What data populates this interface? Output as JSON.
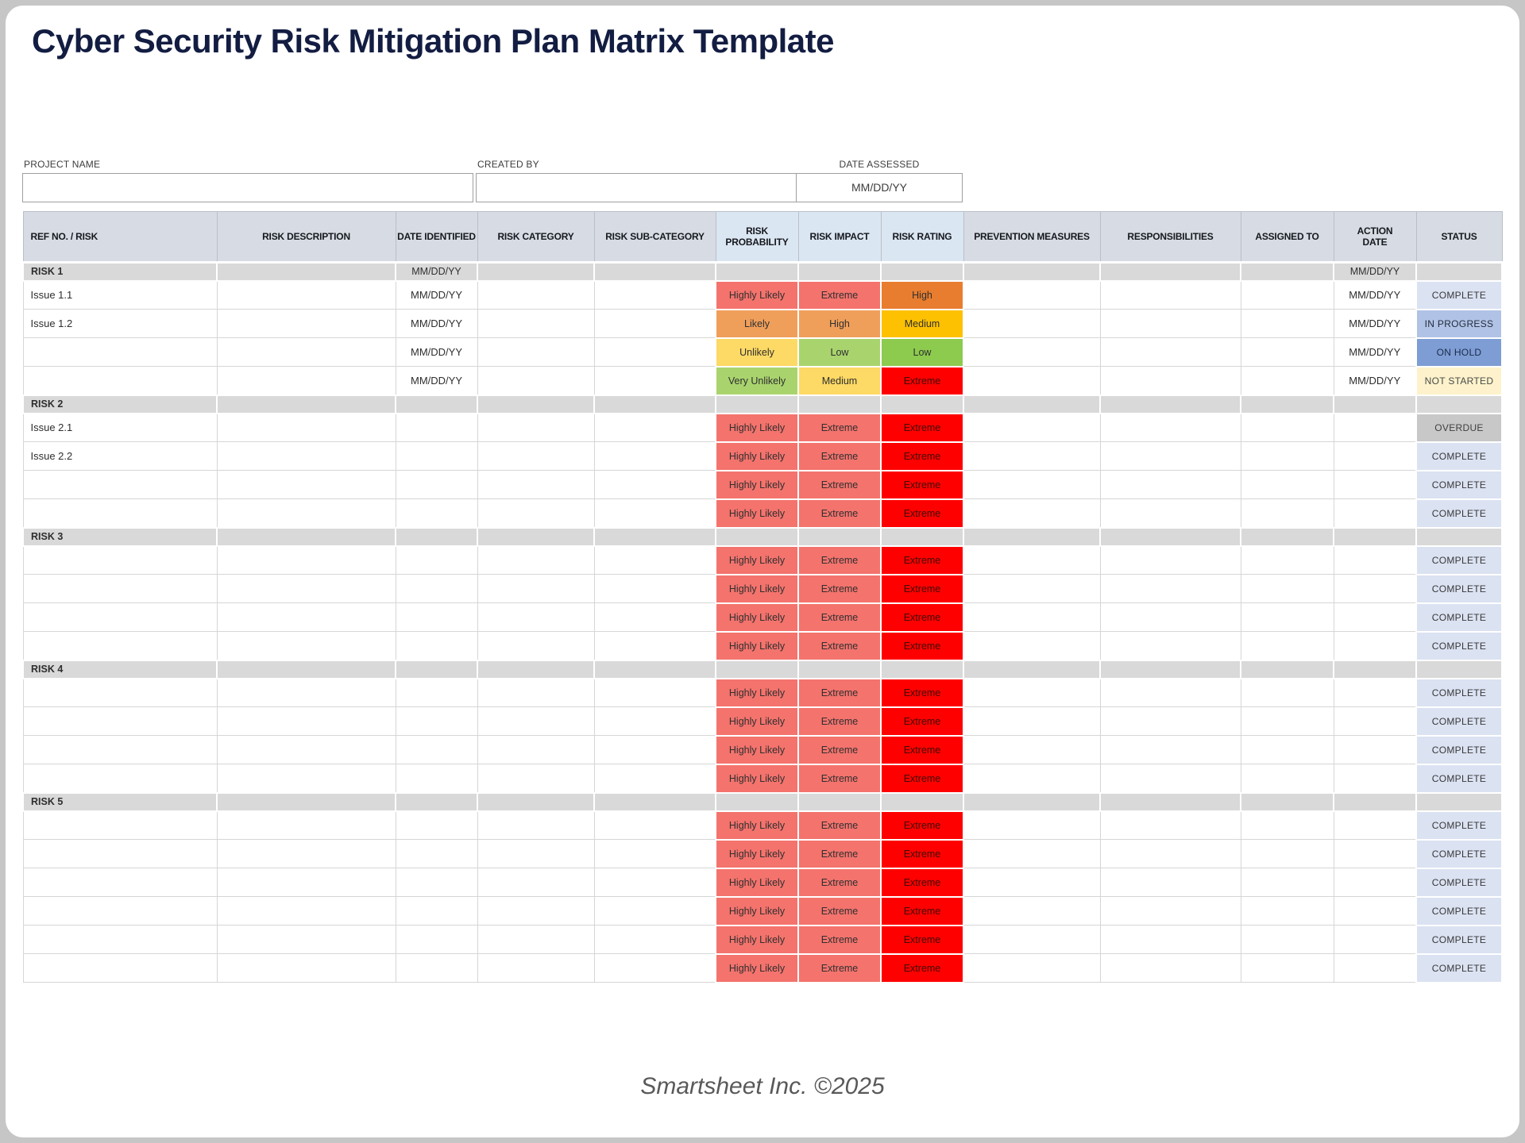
{
  "title": "Cyber Security Risk Mitigation Plan Matrix Template",
  "footer": "Smartsheet Inc. ©2025",
  "form": {
    "project_name_label": "PROJECT NAME",
    "project_name_value": "",
    "created_by_label": "CREATED BY",
    "created_by_value": "",
    "date_assessed_label": "DATE ASSESSED",
    "date_assessed_value": "MM/DD/YY"
  },
  "colors": {
    "chips": {
      "salmon": "#F4736D",
      "light_orange": "#F09F5B",
      "orange": "#E87D2F",
      "gold": "#FDC101",
      "yellow": "#FDD965",
      "light_green": "#A9D46D",
      "green": "#8CCB4E",
      "red": "#FE0000"
    },
    "chip_text": {
      "default": "#2F2F2F",
      "red": "#400C07"
    },
    "status": {
      "COMPLETE": {
        "bg": "#DBE2F2",
        "text": "#383838"
      },
      "IN PROGRESS": {
        "bg": "#B0C3E6",
        "text": "#232C3D"
      },
      "ON HOLD": {
        "bg": "#7E9DD4",
        "text": "#1C2B4A"
      },
      "NOT STARTED": {
        "bg": "#FDF2CB",
        "text": "#4A4A4A"
      },
      "OVERDUE": {
        "bg": "#C8C8C8",
        "text": "#404040"
      }
    }
  },
  "table": {
    "columns": [
      {
        "id": "ref-no-risk",
        "label": "REF NO. / RISK"
      },
      {
        "id": "risk-description",
        "label": "RISK DESCRIPTION"
      },
      {
        "id": "date-identified",
        "label": "DATE IDENTIFIED"
      },
      {
        "id": "risk-category",
        "label": "RISK CATEGORY"
      },
      {
        "id": "risk-sub-category",
        "label": "RISK SUB-CATEGORY"
      },
      {
        "id": "risk-probability",
        "label": "RISK\nPROBABILITY"
      },
      {
        "id": "risk-impact",
        "label": "RISK IMPACT"
      },
      {
        "id": "risk-rating",
        "label": "RISK RATING"
      },
      {
        "id": "prevention-measures",
        "label": "PREVENTION MEASURES"
      },
      {
        "id": "responsibilities",
        "label": "RESPONSIBILITIES"
      },
      {
        "id": "assigned-to",
        "label": "ASSIGNED TO"
      },
      {
        "id": "action-date",
        "label": "ACTION\nDATE"
      },
      {
        "id": "status",
        "label": "STATUS"
      }
    ],
    "sections": [
      {
        "header": {
          "label": "RISK 1",
          "date_identified": "MM/DD/YY",
          "action_date": "MM/DD/YY"
        },
        "rows": [
          {
            "ref": "Issue 1.1",
            "date_identified": "MM/DD/YY",
            "probability": [
              "Highly Likely",
              "salmon"
            ],
            "impact": [
              "Extreme",
              "salmon"
            ],
            "rating": [
              "High",
              "orange"
            ],
            "action_date": "MM/DD/YY",
            "status": "COMPLETE"
          },
          {
            "ref": "Issue 1.2",
            "date_identified": "MM/DD/YY",
            "probability": [
              "Likely",
              "light_orange"
            ],
            "impact": [
              "High",
              "light_orange"
            ],
            "rating": [
              "Medium",
              "gold"
            ],
            "action_date": "MM/DD/YY",
            "status": "IN PROGRESS"
          },
          {
            "ref": "",
            "date_identified": "MM/DD/YY",
            "probability": [
              "Unlikely",
              "yellow"
            ],
            "impact": [
              "Low",
              "light_green"
            ],
            "rating": [
              "Low",
              "green"
            ],
            "action_date": "MM/DD/YY",
            "status": "ON HOLD"
          },
          {
            "ref": "",
            "date_identified": "MM/DD/YY",
            "probability": [
              "Very Unlikely",
              "light_green"
            ],
            "impact": [
              "Medium",
              "yellow"
            ],
            "rating": [
              "Extreme",
              "red"
            ],
            "action_date": "MM/DD/YY",
            "status": "NOT STARTED"
          }
        ]
      },
      {
        "header": {
          "label": "RISK 2",
          "date_identified": "",
          "action_date": ""
        },
        "rows": [
          {
            "ref": "Issue 2.1",
            "date_identified": "",
            "probability": [
              "Highly Likely",
              "salmon"
            ],
            "impact": [
              "Extreme",
              "salmon"
            ],
            "rating": [
              "Extreme",
              "red"
            ],
            "action_date": "",
            "status": "OVERDUE"
          },
          {
            "ref": "Issue 2.2",
            "date_identified": "",
            "probability": [
              "Highly Likely",
              "salmon"
            ],
            "impact": [
              "Extreme",
              "salmon"
            ],
            "rating": [
              "Extreme",
              "red"
            ],
            "action_date": "",
            "status": "COMPLETE"
          },
          {
            "ref": "",
            "date_identified": "",
            "probability": [
              "Highly Likely",
              "salmon"
            ],
            "impact": [
              "Extreme",
              "salmon"
            ],
            "rating": [
              "Extreme",
              "red"
            ],
            "action_date": "",
            "status": "COMPLETE"
          },
          {
            "ref": "",
            "date_identified": "",
            "probability": [
              "Highly Likely",
              "salmon"
            ],
            "impact": [
              "Extreme",
              "salmon"
            ],
            "rating": [
              "Extreme",
              "red"
            ],
            "action_date": "",
            "status": "COMPLETE"
          }
        ]
      },
      {
        "header": {
          "label": "RISK 3",
          "date_identified": "",
          "action_date": ""
        },
        "rows": [
          {
            "ref": "",
            "date_identified": "",
            "probability": [
              "Highly Likely",
              "salmon"
            ],
            "impact": [
              "Extreme",
              "salmon"
            ],
            "rating": [
              "Extreme",
              "red"
            ],
            "action_date": "",
            "status": "COMPLETE"
          },
          {
            "ref": "",
            "date_identified": "",
            "probability": [
              "Highly Likely",
              "salmon"
            ],
            "impact": [
              "Extreme",
              "salmon"
            ],
            "rating": [
              "Extreme",
              "red"
            ],
            "action_date": "",
            "status": "COMPLETE"
          },
          {
            "ref": "",
            "date_identified": "",
            "probability": [
              "Highly Likely",
              "salmon"
            ],
            "impact": [
              "Extreme",
              "salmon"
            ],
            "rating": [
              "Extreme",
              "red"
            ],
            "action_date": "",
            "status": "COMPLETE"
          },
          {
            "ref": "",
            "date_identified": "",
            "probability": [
              "Highly Likely",
              "salmon"
            ],
            "impact": [
              "Extreme",
              "salmon"
            ],
            "rating": [
              "Extreme",
              "red"
            ],
            "action_date": "",
            "status": "COMPLETE"
          }
        ]
      },
      {
        "header": {
          "label": "RISK 4",
          "date_identified": "",
          "action_date": ""
        },
        "rows": [
          {
            "ref": "",
            "date_identified": "",
            "probability": [
              "Highly Likely",
              "salmon"
            ],
            "impact": [
              "Extreme",
              "salmon"
            ],
            "rating": [
              "Extreme",
              "red"
            ],
            "action_date": "",
            "status": "COMPLETE"
          },
          {
            "ref": "",
            "date_identified": "",
            "probability": [
              "Highly Likely",
              "salmon"
            ],
            "impact": [
              "Extreme",
              "salmon"
            ],
            "rating": [
              "Extreme",
              "red"
            ],
            "action_date": "",
            "status": "COMPLETE"
          },
          {
            "ref": "",
            "date_identified": "",
            "probability": [
              "Highly Likely",
              "salmon"
            ],
            "impact": [
              "Extreme",
              "salmon"
            ],
            "rating": [
              "Extreme",
              "red"
            ],
            "action_date": "",
            "status": "COMPLETE"
          },
          {
            "ref": "",
            "date_identified": "",
            "probability": [
              "Highly Likely",
              "salmon"
            ],
            "impact": [
              "Extreme",
              "salmon"
            ],
            "rating": [
              "Extreme",
              "red"
            ],
            "action_date": "",
            "status": "COMPLETE"
          }
        ]
      },
      {
        "header": {
          "label": "RISK 5",
          "date_identified": "",
          "action_date": ""
        },
        "rows": [
          {
            "ref": "",
            "date_identified": "",
            "probability": [
              "Highly Likely",
              "salmon"
            ],
            "impact": [
              "Extreme",
              "salmon"
            ],
            "rating": [
              "Extreme",
              "red"
            ],
            "action_date": "",
            "status": "COMPLETE"
          },
          {
            "ref": "",
            "date_identified": "",
            "probability": [
              "Highly Likely",
              "salmon"
            ],
            "impact": [
              "Extreme",
              "salmon"
            ],
            "rating": [
              "Extreme",
              "red"
            ],
            "action_date": "",
            "status": "COMPLETE"
          },
          {
            "ref": "",
            "date_identified": "",
            "probability": [
              "Highly Likely",
              "salmon"
            ],
            "impact": [
              "Extreme",
              "salmon"
            ],
            "rating": [
              "Extreme",
              "red"
            ],
            "action_date": "",
            "status": "COMPLETE"
          },
          {
            "ref": "",
            "date_identified": "",
            "probability": [
              "Highly Likely",
              "salmon"
            ],
            "impact": [
              "Extreme",
              "salmon"
            ],
            "rating": [
              "Extreme",
              "red"
            ],
            "action_date": "",
            "status": "COMPLETE"
          },
          {
            "ref": "",
            "date_identified": "",
            "probability": [
              "Highly Likely",
              "salmon"
            ],
            "impact": [
              "Extreme",
              "salmon"
            ],
            "rating": [
              "Extreme",
              "red"
            ],
            "action_date": "",
            "status": "COMPLETE"
          },
          {
            "ref": "",
            "date_identified": "",
            "probability": [
              "Highly Likely",
              "salmon"
            ],
            "impact": [
              "Extreme",
              "salmon"
            ],
            "rating": [
              "Extreme",
              "red"
            ],
            "action_date": "",
            "status": "COMPLETE"
          }
        ]
      }
    ]
  }
}
